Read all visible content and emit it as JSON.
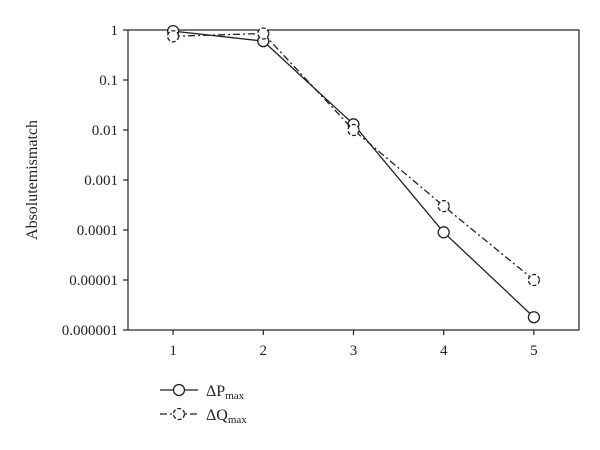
{
  "chart_data": {
    "type": "line",
    "title": "",
    "xlabel": "",
    "ylabel": "Absolutemismatch",
    "x": [
      1,
      2,
      3,
      4,
      5
    ],
    "xlim": [
      0.5,
      5.5
    ],
    "ylim": [
      1e-06,
      1
    ],
    "yscale": "log",
    "xticks": [
      1,
      2,
      3,
      4,
      5
    ],
    "yticks": [
      {
        "value": 1,
        "label": "1"
      },
      {
        "value": 0.1,
        "label": "0.1"
      },
      {
        "value": 0.01,
        "label": "0.01"
      },
      {
        "value": 0.001,
        "label": "0.001"
      },
      {
        "value": 0.0001,
        "label": "0.0001"
      },
      {
        "value": 1e-05,
        "label": "0.00001"
      },
      {
        "value": 1e-06,
        "label": "0.000001"
      }
    ],
    "grid": false,
    "legend_position": "bottom-left",
    "series": [
      {
        "name": "ΔPmax",
        "legend_main": "ΔP",
        "legend_sub": "max",
        "values": [
          0.95,
          0.6,
          0.013,
          9e-05,
          1.8e-06
        ],
        "line_style": "solid",
        "marker": "circle",
        "color": "#231f20"
      },
      {
        "name": "ΔQmax",
        "legend_main": "ΔQ",
        "legend_sub": "max",
        "values": [
          0.75,
          0.85,
          0.01,
          0.0003,
          1e-05
        ],
        "line_style": "dashdot",
        "marker": "dashed-circle",
        "color": "#231f20"
      }
    ]
  }
}
